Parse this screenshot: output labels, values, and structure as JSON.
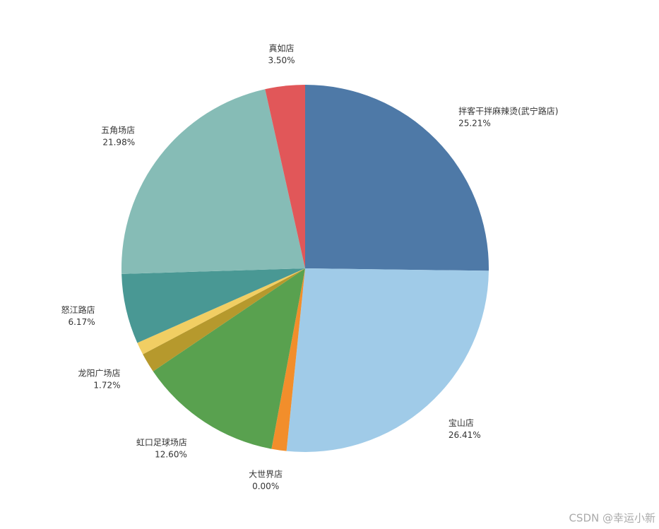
{
  "chart_data": {
    "type": "pie",
    "categories": [
      "拌客干拌麻辣烫(武宁路店)",
      "宝山店",
      null,
      "大世界店",
      "虹口足球场店",
      "龙阳广场店",
      null,
      "怒江路店",
      "五角场店",
      "真如店"
    ],
    "values": [
      25.21,
      26.41,
      1.31,
      0.0,
      12.6,
      1.72,
      1.1,
      6.17,
      21.98,
      3.5
    ],
    "value_labels": [
      "25.21%",
      "26.41%",
      null,
      "0.00%",
      "12.60%",
      "1.72%",
      null,
      "6.17%",
      "21.98%",
      "3.50%"
    ],
    "colors": [
      "#4e79a7",
      "#a0cbe8",
      "#f28e2b",
      "#ffbe7d",
      "#59a14f",
      "#b6992d",
      "#f1ce63",
      "#499894",
      "#86bcb6",
      "#e15759"
    ]
  },
  "watermark": "CSDN @幸运小新"
}
